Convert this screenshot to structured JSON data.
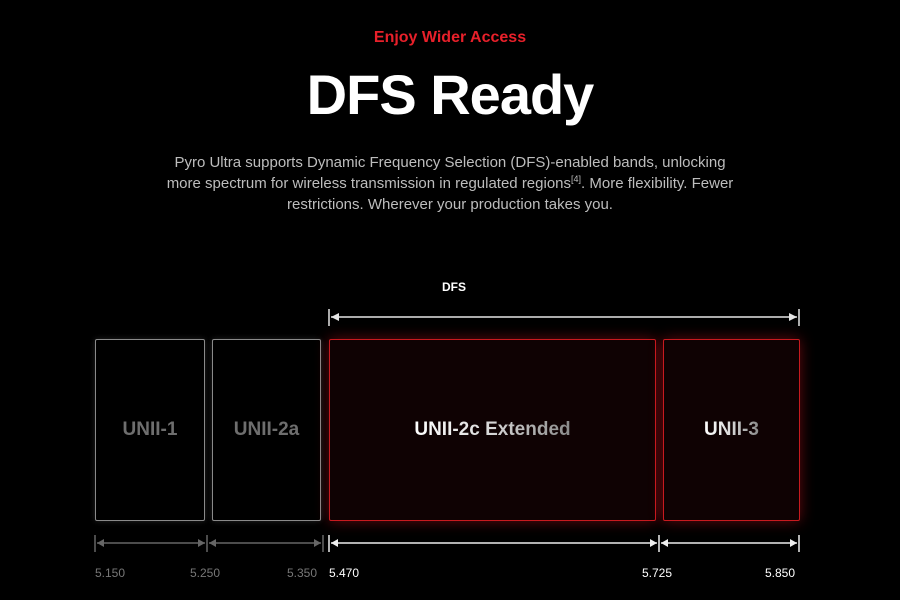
{
  "header": {
    "eyebrow": "Enjoy Wider Access",
    "title": "DFS Ready",
    "description": {
      "line1": "Pyro Ultra supports Dynamic Frequency Selection (DFS)-enabled bands, unlocking",
      "line2_before": "more spectrum for wireless transmission in regulated regions",
      "footnote": "[4]",
      "line2_after": ". More flexibility. Fewer",
      "line3": "restrictions. Wherever your production takes you."
    }
  },
  "diagram": {
    "dfs_label": "DFS",
    "bands": [
      {
        "name": "UNII-1",
        "dfs": false
      },
      {
        "name": "UNII-2a",
        "dfs": false
      },
      {
        "name": "UNII-2c Extended",
        "dfs": true
      },
      {
        "name": "UNII-3",
        "dfs": true
      }
    ],
    "frequencies": [
      "5.150",
      "5.250",
      "5.350",
      "5.470",
      "5.725",
      "5.850"
    ],
    "colors": {
      "accent": "#e8202a",
      "dfs_border": "#c81a1f",
      "non_dfs_border": "#8a8a8a"
    }
  }
}
